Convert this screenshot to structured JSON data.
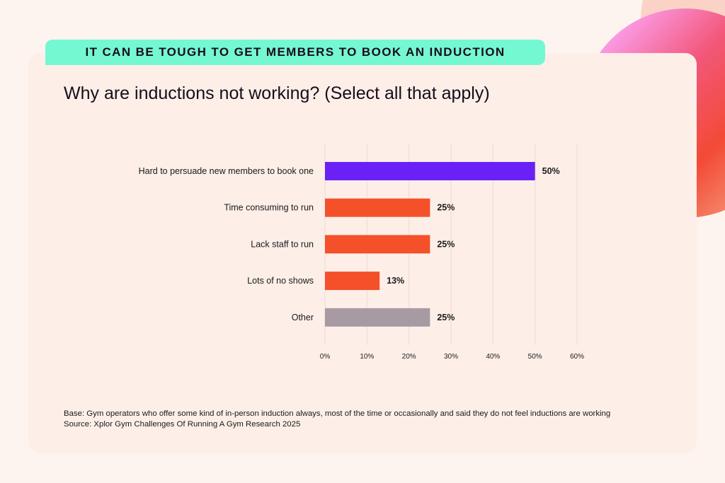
{
  "banner": "IT CAN BE TOUGH TO GET MEMBERS TO BOOK AN INDUCTION",
  "chart_data": {
    "type": "bar",
    "orientation": "horizontal",
    "title": "Why are inductions not working? (Select all that apply)",
    "categories": [
      "Hard to persuade new members to book one",
      "Time consuming to run",
      "Lack staff to run",
      "Lots of no shows",
      "Other"
    ],
    "values": [
      50,
      25,
      25,
      13,
      25
    ],
    "value_labels": [
      "50%",
      "25%",
      "25%",
      "13%",
      "25%"
    ],
    "colors": [
      "#6b21f5",
      "#f4502a",
      "#f4502a",
      "#f4502a",
      "#a89aa2"
    ],
    "xlim": [
      0,
      60
    ],
    "xticks": [
      "0%",
      "10%",
      "20%",
      "30%",
      "40%",
      "50%",
      "60%"
    ],
    "grid": true
  },
  "footer": {
    "base": "Base: Gym operators who offer some kind of in-person induction always, most of the time or occasionally and said they do not feel inductions are working",
    "source": "Source: Xplor Gym Challenges Of Running A Gym Research 2025"
  }
}
